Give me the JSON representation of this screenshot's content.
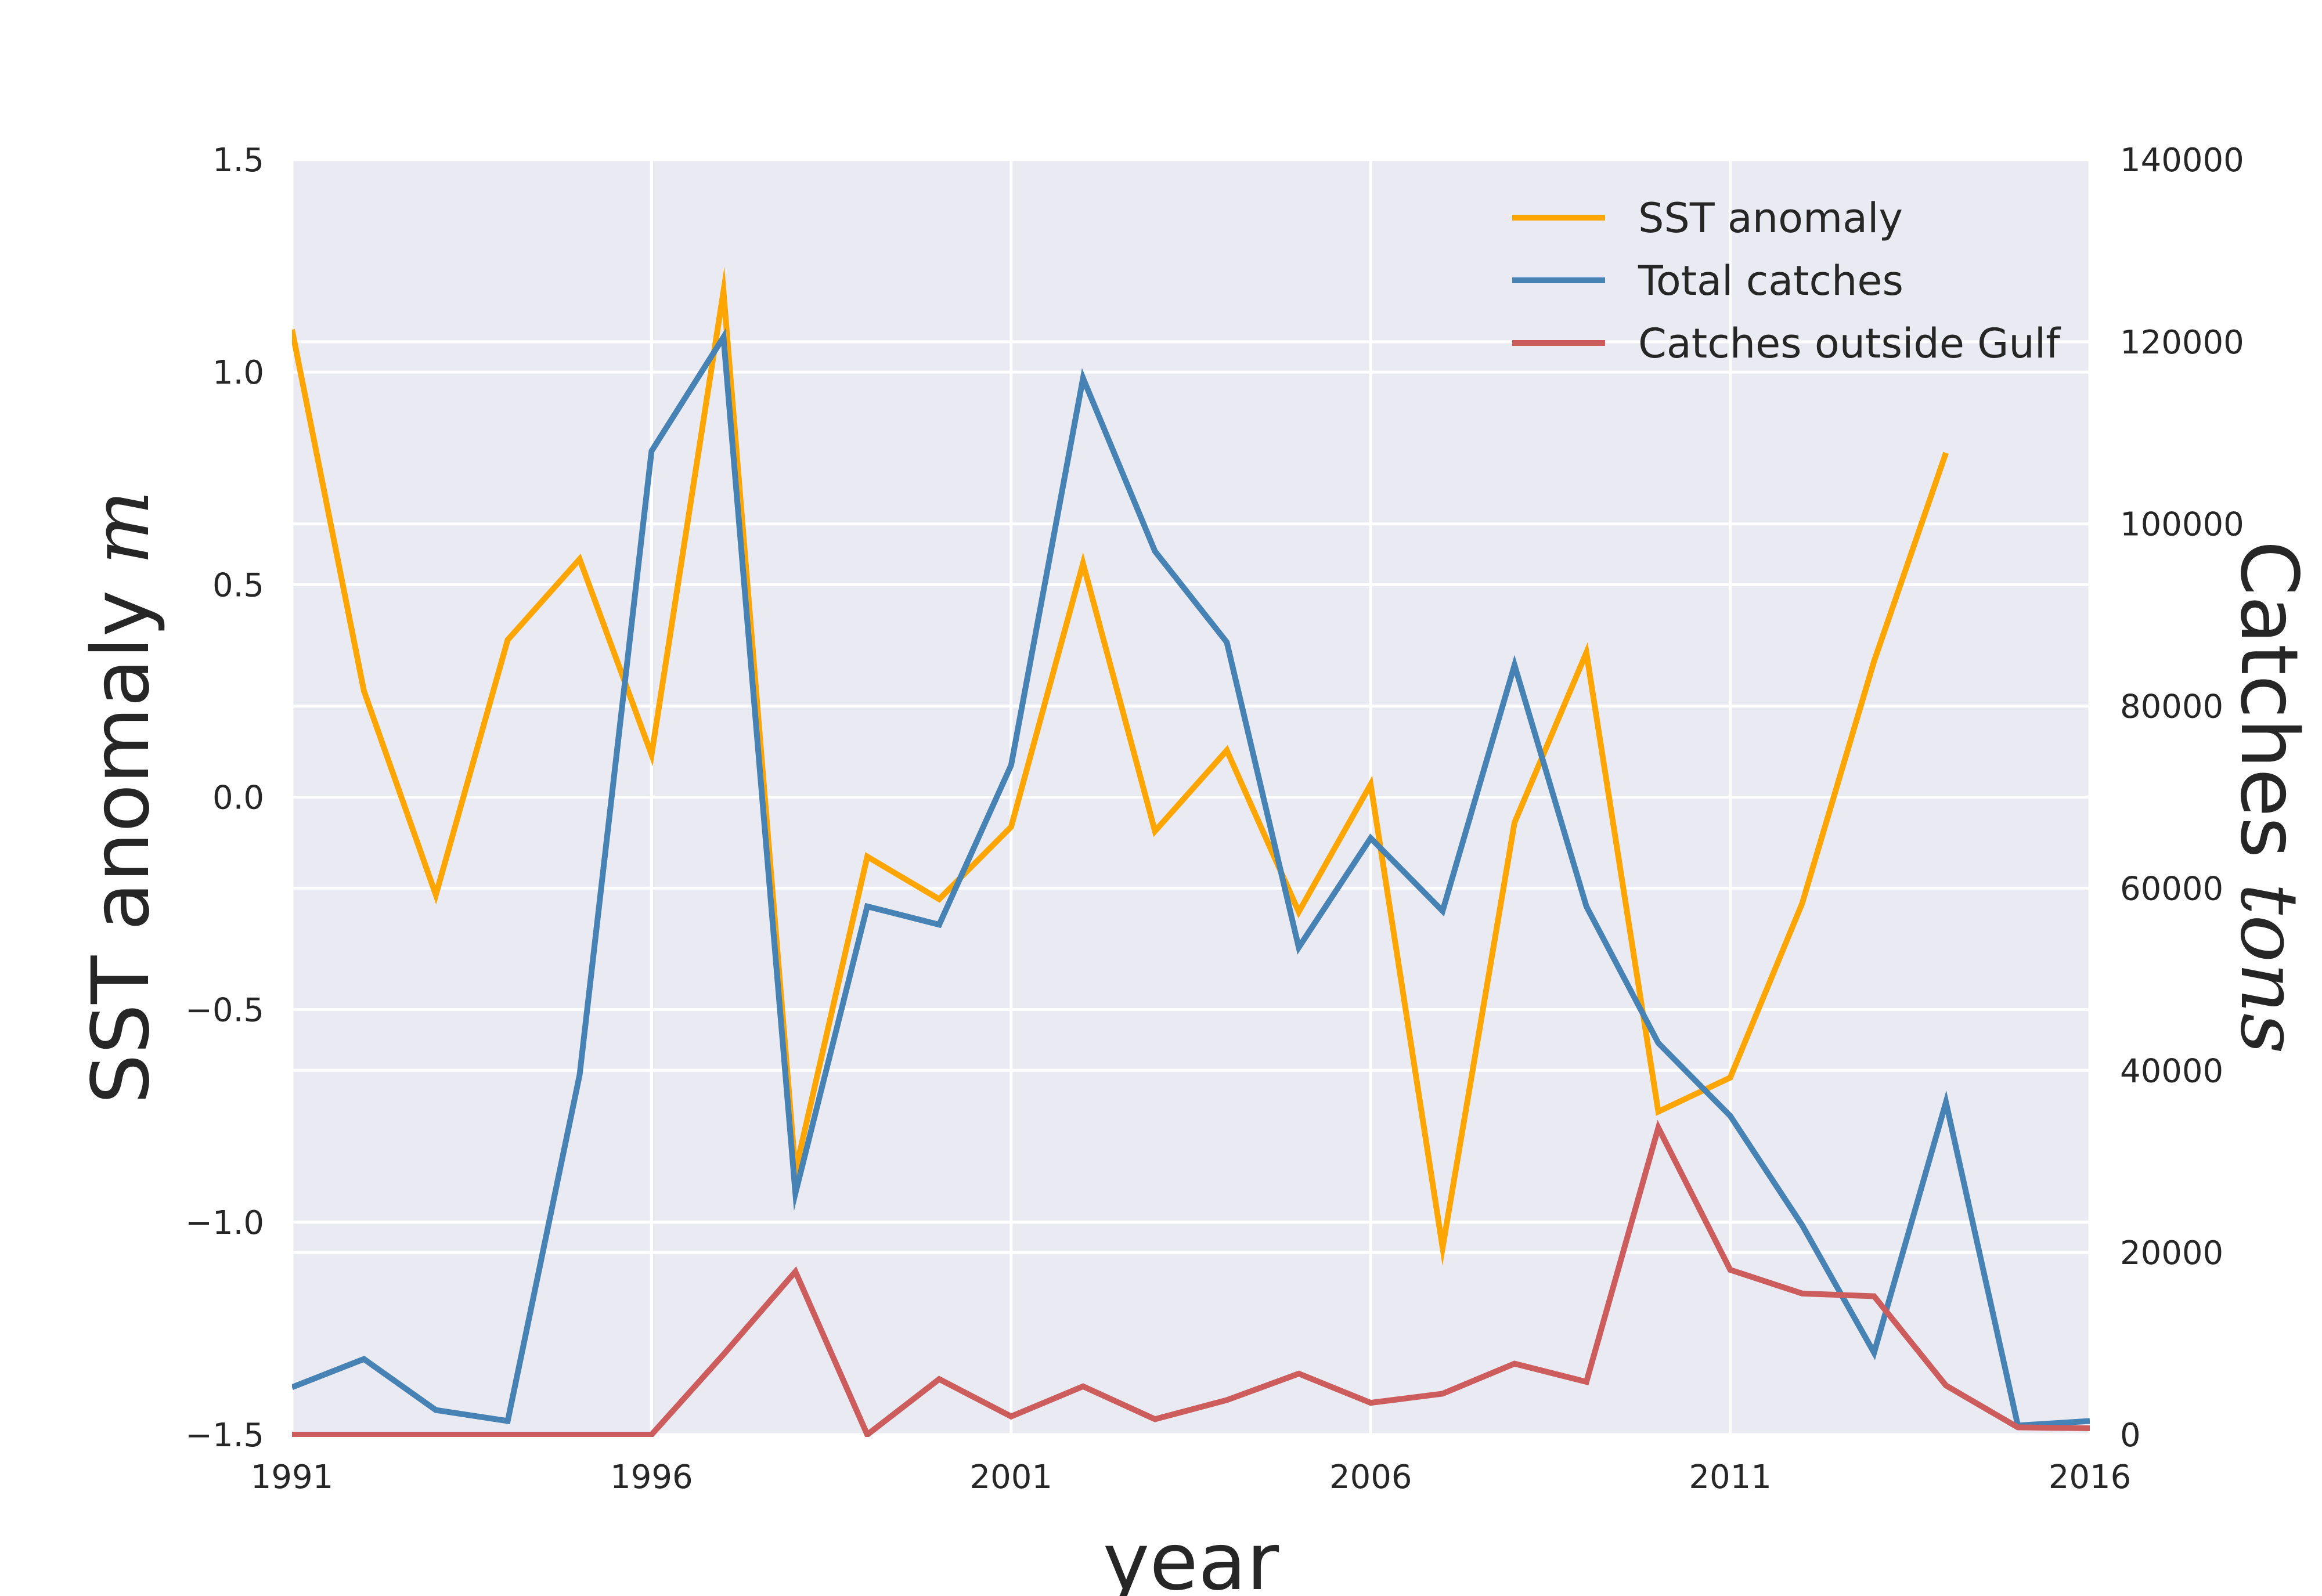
{
  "chart_data": {
    "type": "line",
    "xlabel": "year",
    "ylabel_left": "SST anomaly",
    "ylabel_left_unit": "m",
    "ylabel_right": "Catches",
    "ylabel_right_unit": "tons",
    "x": [
      1991,
      1992,
      1993,
      1994,
      1995,
      1996,
      1997,
      1998,
      1999,
      2000,
      2001,
      2002,
      2003,
      2004,
      2005,
      2006,
      2007,
      2008,
      2009,
      2010,
      2011,
      2012,
      2013,
      2014,
      2015,
      2016
    ],
    "xlim": [
      1991,
      2016
    ],
    "xticks": [
      "1991",
      "1996",
      "2001",
      "2006",
      "2011",
      "2016"
    ],
    "ylim_left": [
      -1.5,
      1.5
    ],
    "yticks_left": [
      "1.5",
      "1.0",
      "0.5",
      "0.0",
      "−0.5",
      "−1.0",
      "−1.5"
    ],
    "ylim_right": [
      0,
      140000
    ],
    "yticks_right": [
      "140000",
      "120000",
      "100000",
      "80000",
      "60000",
      "40000",
      "20000",
      "0"
    ],
    "grid": true,
    "legend_position": "top-right",
    "series": [
      {
        "name": "SST anomaly",
        "axis": "left",
        "color": "#FFA500",
        "values": [
          1.1,
          0.25,
          -0.23,
          0.37,
          0.56,
          0.1,
          1.19,
          -0.88,
          -0.14,
          -0.24,
          -0.07,
          0.55,
          -0.08,
          0.11,
          -0.27,
          0.03,
          -1.06,
          -0.06,
          0.34,
          -0.74,
          -0.66,
          -0.25,
          0.32,
          0.81,
          null,
          null
        ]
      },
      {
        "name": "Total catches",
        "axis": "right",
        "color": "#4682B4",
        "values": [
          5200,
          8300,
          2700,
          1500,
          39500,
          108000,
          120500,
          26500,
          58000,
          56000,
          73500,
          116000,
          97000,
          87000,
          53500,
          65500,
          57500,
          84500,
          58000,
          43000,
          35000,
          23000,
          9000,
          36500,
          1000,
          1500
        ]
      },
      {
        "name": "Catches outside Gulf",
        "axis": "right",
        "color": "#CD5C5C",
        "values": [
          0,
          0,
          0,
          0,
          0,
          0,
          8800,
          17900,
          0,
          6100,
          2000,
          5300,
          1700,
          3800,
          6700,
          3500,
          4500,
          7800,
          5800,
          33700,
          18100,
          15500,
          15200,
          5400,
          800,
          700
        ]
      }
    ]
  }
}
